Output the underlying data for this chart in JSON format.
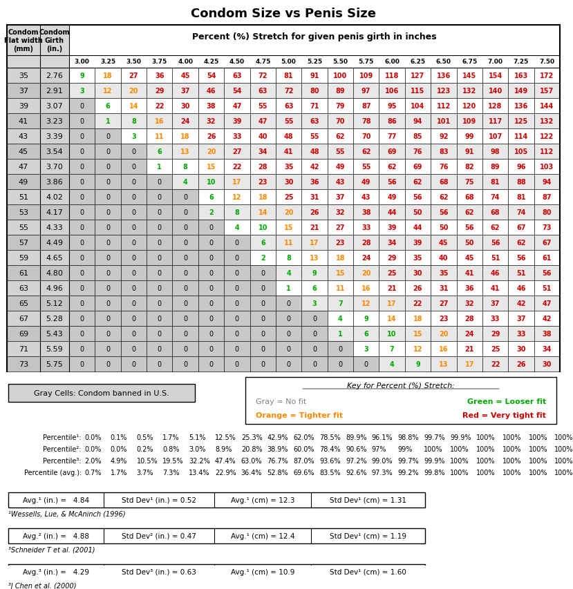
{
  "title": "Condom Size vs Penis Size",
  "girth_cols": [
    3.0,
    3.25,
    3.5,
    3.75,
    4.0,
    4.25,
    4.5,
    4.75,
    5.0,
    5.25,
    5.5,
    5.75,
    6.0,
    6.25,
    6.5,
    6.75,
    7.0,
    7.25,
    7.5
  ],
  "rows": [
    {
      "mm": 35,
      "in": 2.76,
      "vals": [
        9,
        18,
        27,
        36,
        45,
        54,
        63,
        72,
        81,
        91,
        100,
        109,
        118,
        127,
        136,
        145,
        154,
        163,
        172
      ]
    },
    {
      "mm": 37,
      "in": 2.91,
      "vals": [
        3,
        12,
        20,
        29,
        37,
        46,
        54,
        63,
        72,
        80,
        89,
        97,
        106,
        115,
        123,
        132,
        140,
        149,
        157
      ]
    },
    {
      "mm": 39,
      "in": 3.07,
      "vals": [
        0,
        6,
        14,
        22,
        30,
        38,
        47,
        55,
        63,
        71,
        79,
        87,
        95,
        104,
        112,
        120,
        128,
        136,
        144
      ]
    },
    {
      "mm": 41,
      "in": 3.23,
      "vals": [
        0,
        1,
        8,
        16,
        24,
        32,
        39,
        47,
        55,
        63,
        70,
        78,
        86,
        94,
        101,
        109,
        117,
        125,
        132
      ]
    },
    {
      "mm": 43,
      "in": 3.39,
      "vals": [
        0,
        0,
        3,
        11,
        18,
        26,
        33,
        40,
        48,
        55,
        62,
        70,
        77,
        85,
        92,
        99,
        107,
        114,
        122
      ]
    },
    {
      "mm": 45,
      "in": 3.54,
      "vals": [
        0,
        0,
        0,
        6,
        13,
        20,
        27,
        34,
        41,
        48,
        55,
        62,
        69,
        76,
        83,
        91,
        98,
        105,
        112
      ]
    },
    {
      "mm": 47,
      "in": 3.7,
      "vals": [
        0,
        0,
        0,
        1,
        8,
        15,
        22,
        28,
        35,
        42,
        49,
        55,
        62,
        69,
        76,
        82,
        89,
        96,
        103
      ]
    },
    {
      "mm": 49,
      "in": 3.86,
      "vals": [
        0,
        0,
        0,
        0,
        4,
        10,
        17,
        23,
        30,
        36,
        43,
        49,
        56,
        62,
        68,
        75,
        81,
        88,
        94
      ]
    },
    {
      "mm": 51,
      "in": 4.02,
      "vals": [
        0,
        0,
        0,
        0,
        0,
        6,
        12,
        18,
        25,
        31,
        37,
        43,
        49,
        56,
        62,
        68,
        74,
        81,
        87
      ]
    },
    {
      "mm": 53,
      "in": 4.17,
      "vals": [
        0,
        0,
        0,
        0,
        0,
        2,
        8,
        14,
        20,
        26,
        32,
        38,
        44,
        50,
        56,
        62,
        68,
        74,
        80
      ]
    },
    {
      "mm": 55,
      "in": 4.33,
      "vals": [
        0,
        0,
        0,
        0,
        0,
        0,
        4,
        10,
        15,
        21,
        27,
        33,
        39,
        44,
        50,
        56,
        62,
        67,
        73
      ]
    },
    {
      "mm": 57,
      "in": 4.49,
      "vals": [
        0,
        0,
        0,
        0,
        0,
        0,
        0,
        6,
        11,
        17,
        23,
        28,
        34,
        39,
        45,
        50,
        56,
        62,
        67
      ]
    },
    {
      "mm": 59,
      "in": 4.65,
      "vals": [
        0,
        0,
        0,
        0,
        0,
        0,
        0,
        2,
        8,
        13,
        18,
        24,
        29,
        35,
        40,
        45,
        51,
        56,
        61
      ]
    },
    {
      "mm": 61,
      "in": 4.8,
      "vals": [
        0,
        0,
        0,
        0,
        0,
        0,
        0,
        0,
        4,
        9,
        15,
        20,
        25,
        30,
        35,
        41,
        46,
        51,
        56
      ]
    },
    {
      "mm": 63,
      "in": 4.96,
      "vals": [
        0,
        0,
        0,
        0,
        0,
        0,
        0,
        0,
        1,
        6,
        11,
        16,
        21,
        26,
        31,
        36,
        41,
        46,
        51
      ]
    },
    {
      "mm": 65,
      "in": 5.12,
      "vals": [
        0,
        0,
        0,
        0,
        0,
        0,
        0,
        0,
        0,
        3,
        7,
        12,
        17,
        22,
        27,
        32,
        37,
        42,
        47
      ]
    },
    {
      "mm": 67,
      "in": 5.28,
      "vals": [
        0,
        0,
        0,
        0,
        0,
        0,
        0,
        0,
        0,
        0,
        4,
        9,
        14,
        18,
        23,
        28,
        33,
        37,
        42
      ]
    },
    {
      "mm": 69,
      "in": 5.43,
      "vals": [
        0,
        0,
        0,
        0,
        0,
        0,
        0,
        0,
        0,
        0,
        1,
        6,
        10,
        15,
        20,
        24,
        29,
        33,
        38
      ]
    },
    {
      "mm": 71,
      "in": 5.59,
      "vals": [
        0,
        0,
        0,
        0,
        0,
        0,
        0,
        0,
        0,
        0,
        0,
        3,
        7,
        12,
        16,
        21,
        25,
        30,
        34
      ]
    },
    {
      "mm": 73,
      "in": 5.75,
      "vals": [
        0,
        0,
        0,
        0,
        0,
        0,
        0,
        0,
        0,
        0,
        0,
        0,
        4,
        9,
        13,
        17,
        22,
        26,
        30
      ]
    }
  ],
  "percentile1": [
    "0.0%",
    "0.1%",
    "0.5%",
    "1.7%",
    "5.1%",
    "12.5%",
    "25.3%",
    "42.9%",
    "62.0%",
    "78.5%",
    "89.9%",
    "96.1%",
    "98.8%",
    "99.7%",
    "99.9%",
    "100%",
    "100%",
    "100%",
    "100%"
  ],
  "percentile2": [
    "0.0%",
    "0.0%",
    "0.2%",
    "0.8%",
    "3.0%",
    "8.9%",
    "20.8%",
    "38.9%",
    "60.0%",
    "78.4%",
    "90.6%",
    "97%",
    "99%",
    "100%",
    "100%",
    "100%",
    "100%",
    "100%",
    "100%"
  ],
  "percentile3": [
    "2.0%",
    "4.9%",
    "10.5%",
    "19.5%",
    "32.2%",
    "47.4%",
    "63.0%",
    "76.7%",
    "87.0%",
    "93.6%",
    "97.2%",
    "99.0%",
    "99.7%",
    "99.9%",
    "100%",
    "100%",
    "100%",
    "100%",
    "100%"
  ],
  "percentile_avg": [
    "0.7%",
    "1.7%",
    "3.7%",
    "7.3%",
    "13.4%",
    "22.9%",
    "36.4%",
    "52.8%",
    "69.6%",
    "83.5%",
    "92.6%",
    "97.3%",
    "99.2%",
    "99.8%",
    "100%",
    "100%",
    "100%",
    "100%",
    "100%"
  ],
  "stats": [
    {
      "label": "Avg.¹ (in.) =",
      "avg_in": "4.84",
      "std_in_label": "Std Dev¹ (in.) =",
      "std_in": "0.52",
      "avg_cm_label": "Avg.¹ (cm) =",
      "avg_cm": "12.3",
      "std_cm_label": "Std Dev¹ (cm) =",
      "std_cm": "1.31",
      "ref": "¹Wessells, Lue, & McAninch (1996)"
    },
    {
      "label": "Avg.² (in.) =",
      "avg_in": "4.88",
      "std_in_label": "Std Dev² (in.) =",
      "std_in": "0.47",
      "avg_cm_label": "Avg.¹ (cm) =",
      "avg_cm": "12.4",
      "std_cm_label": "Std Dev¹ (cm) =",
      "std_cm": "1.19",
      "ref": "³Schneider T et al. (2001)"
    },
    {
      "label": "Avg.³ (in.) =",
      "avg_in": "4.29",
      "std_in_label": "Std Dev³ (in.) =",
      "std_in": "0.63",
      "avg_cm_label": "Avg.¹ (cm) =",
      "avg_cm": "10.9",
      "std_cm_label": "Std Dev¹ (cm) =",
      "std_cm": "1.60",
      "ref": "³J Chen et al. (2000)"
    }
  ],
  "bg_color": "#ffffff"
}
